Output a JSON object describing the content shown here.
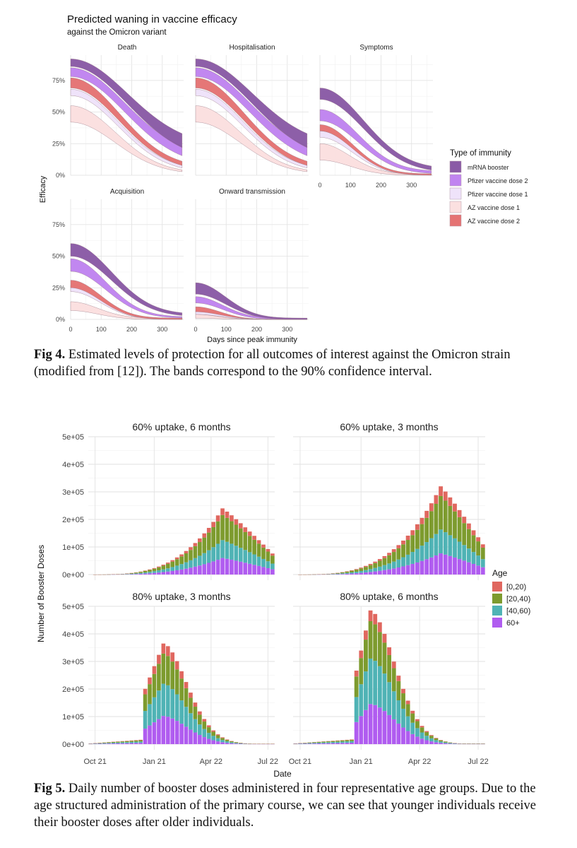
{
  "figure4": {
    "title": "Predicted waning in vaccine efficacy",
    "subtitle": "against the Omicron variant",
    "caption_label": "Fig 4.",
    "caption_text": "Estimated levels of protection for all outcomes of interest against the Omicron strain (modified from [12]). The bands correspond to the 90% confidence interval."
  },
  "figure5": {
    "caption_label": "Fig 5.",
    "caption_text": "Daily number of booster doses administered in four representative age groups. Due to the age structured administration of the primary course, we can see that younger individuals receive their booster doses after older individuals."
  },
  "chart_data": [
    {
      "type": "area",
      "description_of_layout": "faceted",
      "xlabel": "Days since peak immunity",
      "ylabel": "Efficacy",
      "x_ticks": [
        0,
        100,
        200,
        300
      ],
      "y_ticks": [
        "0%",
        "25%",
        "50%",
        "75%"
      ],
      "xlim": [
        0,
        370
      ],
      "ylim": [
        0,
        0.95
      ],
      "legend_title": "Type of immunity",
      "legend_position": "right",
      "legend": [
        {
          "name": "mRNA booster",
          "color": "#8a5aa6"
        },
        {
          "name": "Pfizer vaccine dose 2",
          "color": "#c084f0"
        },
        {
          "name": "Pfizer vaccine dose 1",
          "color": "#efe3fa"
        },
        {
          "name": "AZ vaccine dose 1",
          "color": "#fbe0e0"
        },
        {
          "name": "AZ vaccine dose 2",
          "color": "#e57373"
        }
      ],
      "panels": [
        {
          "name": "Death",
          "series": [
            {
              "name": "mRNA booster",
              "start": [
                0.86,
                0.92
              ],
              "end": [
                0.11,
                0.23
              ],
              "decay": 210
            },
            {
              "name": "Pfizer vaccine dose 2",
              "start": [
                0.78,
                0.85
              ],
              "end": [
                0.07,
                0.15
              ],
              "decay": 200
            },
            {
              "name": "Pfizer vaccine dose 1",
              "start": [
                0.63,
                0.68
              ],
              "end": [
                0.02,
                0.04
              ],
              "decay": 175
            },
            {
              "name": "AZ vaccine dose 2",
              "start": [
                0.69,
                0.77
              ],
              "end": [
                0.03,
                0.06
              ],
              "decay": 180
            },
            {
              "name": "AZ vaccine dose 1",
              "start": [
                0.42,
                0.55
              ],
              "end": [
                0.01,
                0.02
              ],
              "decay": 165
            }
          ]
        },
        {
          "name": "Hospitalisation",
          "series": [
            {
              "name": "mRNA booster",
              "start": [
                0.86,
                0.92
              ],
              "end": [
                0.11,
                0.23
              ],
              "decay": 210
            },
            {
              "name": "Pfizer vaccine dose 2",
              "start": [
                0.78,
                0.85
              ],
              "end": [
                0.07,
                0.15
              ],
              "decay": 200
            },
            {
              "name": "Pfizer vaccine dose 1",
              "start": [
                0.63,
                0.68
              ],
              "end": [
                0.02,
                0.04
              ],
              "decay": 175
            },
            {
              "name": "AZ vaccine dose 2",
              "start": [
                0.69,
                0.77
              ],
              "end": [
                0.03,
                0.06
              ],
              "decay": 180
            },
            {
              "name": "AZ vaccine dose 1",
              "start": [
                0.42,
                0.55
              ],
              "end": [
                0.01,
                0.02
              ],
              "decay": 165
            }
          ]
        },
        {
          "name": "Symptoms",
          "series": [
            {
              "name": "mRNA booster",
              "start": [
                0.6,
                0.69
              ],
              "end": [
                0.02,
                0.05
              ],
              "decay": 160
            },
            {
              "name": "Pfizer vaccine dose 2",
              "start": [
                0.43,
                0.52
              ],
              "end": [
                0.01,
                0.03
              ],
              "decay": 140
            },
            {
              "name": "Pfizer vaccine dose 1",
              "start": [
                0.3,
                0.35
              ],
              "end": [
                0.0,
                0.01
              ],
              "decay": 120
            },
            {
              "name": "AZ vaccine dose 2",
              "start": [
                0.35,
                0.4
              ],
              "end": [
                0.0,
                0.01
              ],
              "decay": 120
            },
            {
              "name": "AZ vaccine dose 1",
              "start": [
                0.12,
                0.25
              ],
              "end": [
                0.0,
                0.01
              ],
              "decay": 110
            }
          ]
        },
        {
          "name": "Acquisition",
          "series": [
            {
              "name": "mRNA booster",
              "start": [
                0.5,
                0.6
              ],
              "end": [
                0.02,
                0.04
              ],
              "decay": 150
            },
            {
              "name": "Pfizer vaccine dose 2",
              "start": [
                0.38,
                0.48
              ],
              "end": [
                0.01,
                0.02
              ],
              "decay": 130
            },
            {
              "name": "Pfizer vaccine dose 1",
              "start": [
                0.22,
                0.27
              ],
              "end": [
                0.0,
                0.01
              ],
              "decay": 110
            },
            {
              "name": "AZ vaccine dose 2",
              "start": [
                0.25,
                0.31
              ],
              "end": [
                0.0,
                0.01
              ],
              "decay": 110
            },
            {
              "name": "AZ vaccine dose 1",
              "start": [
                0.07,
                0.14
              ],
              "end": [
                0.0,
                0.01
              ],
              "decay": 100
            }
          ]
        },
        {
          "name": "Onward transmission",
          "series": [
            {
              "name": "mRNA booster",
              "start": [
                0.2,
                0.29
              ],
              "end": [
                0.0,
                0.01
              ],
              "decay": 110
            },
            {
              "name": "Pfizer vaccine dose 2",
              "start": [
                0.13,
                0.18
              ],
              "end": [
                0.0,
                0.01
              ],
              "decay": 100
            },
            {
              "name": "Pfizer vaccine dose 1",
              "start": [
                0.04,
                0.07
              ],
              "end": [
                0.0,
                0.0
              ],
              "decay": 90
            },
            {
              "name": "AZ vaccine dose 2",
              "start": [
                0.06,
                0.1
              ],
              "end": [
                0.0,
                0.0
              ],
              "decay": 90
            },
            {
              "name": "AZ vaccine dose 1",
              "start": [
                0.01,
                0.04
              ],
              "end": [
                0.0,
                0.0
              ],
              "decay": 80
            }
          ]
        }
      ]
    },
    {
      "type": "bar",
      "description_of_layout": "faceted stacked",
      "xlabel": "Date",
      "ylabel": "Number of Booster Doses",
      "x_ticks": [
        "Oct 21",
        "Jan 21",
        "Apr 22",
        "Jul 22"
      ],
      "y_ticks": [
        "0e+00",
        "1e+05",
        "2e+05",
        "3e+05",
        "4e+05",
        "5e+05"
      ],
      "ylim": [
        0,
        500000
      ],
      "legend_title": "Age",
      "legend_position": "right",
      "legend": [
        {
          "name": "[0,20)",
          "color": "#e0675f"
        },
        {
          "name": "[20,40)",
          "color": "#7d9b2e"
        },
        {
          "name": "[40,60)",
          "color": "#4fb3b5"
        },
        {
          "name": "60+",
          "color": "#b05cf0"
        }
      ],
      "panels": [
        {
          "name": "60% uptake, 6 months",
          "peak_week": 29,
          "total_peak": 240000,
          "end_week": 40,
          "shape": "gradual",
          "shares": {
            "60+": 0.25,
            "[40,60)": 0.27,
            "[20,40)": 0.38,
            "[0,20)": 0.1
          }
        },
        {
          "name": "60% uptake, 3 months",
          "peak_week": 31,
          "total_peak": 320000,
          "end_week": 40,
          "shape": "gradual",
          "shares": {
            "60+": 0.24,
            "[40,60)": 0.27,
            "[20,40)": 0.38,
            "[0,20)": 0.11
          }
        },
        {
          "name": "80% uptake, 3 months",
          "peak_week": 16,
          "total_peak": 365000,
          "end_week": 40,
          "shape": "jump",
          "jump_week": 12,
          "shares": {
            "60+": 0.28,
            "[40,60)": 0.32,
            "[20,40)": 0.3,
            "[0,20)": 0.1
          }
        },
        {
          "name": "80% uptake, 6 months",
          "peak_week": 16,
          "total_peak": 485000,
          "end_week": 40,
          "shape": "jump",
          "jump_week": 13,
          "shares": {
            "60+": 0.3,
            "[40,60)": 0.34,
            "[20,40)": 0.28,
            "[0,20)": 0.08
          }
        }
      ]
    }
  ]
}
